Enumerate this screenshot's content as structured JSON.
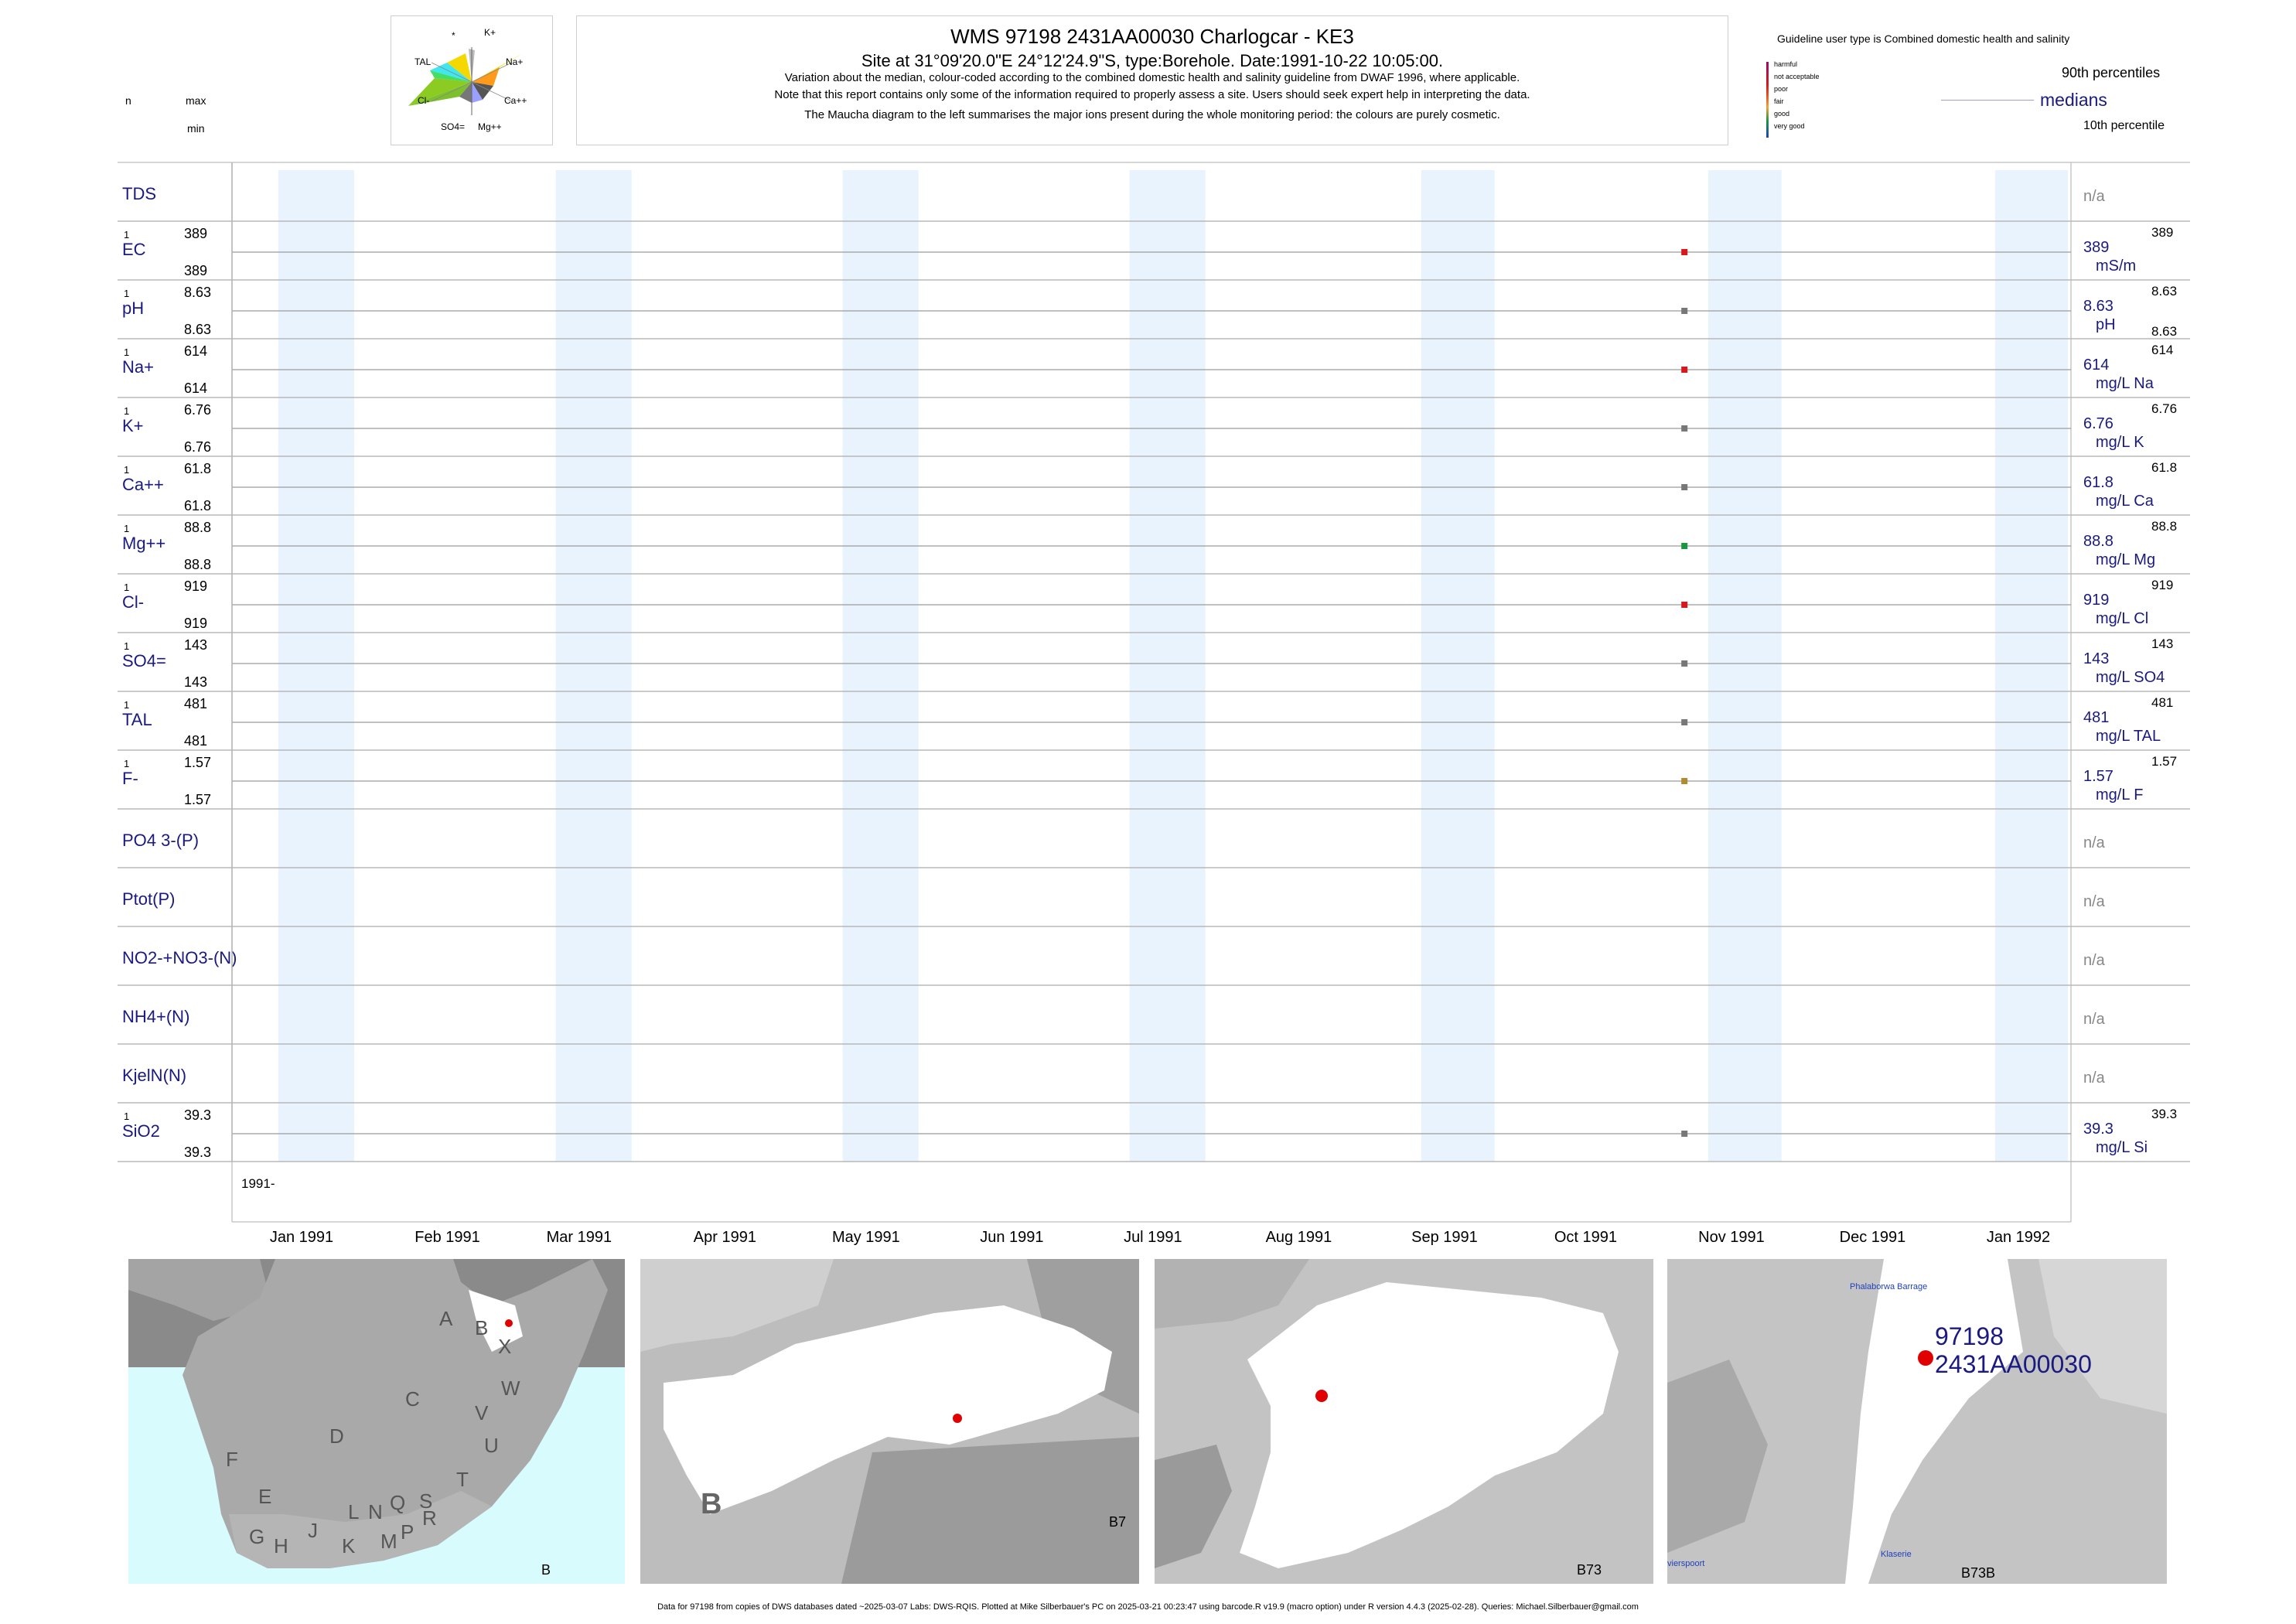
{
  "header": {
    "title": "WMS 97198 2431AA00030 Charlogcar - KE3",
    "subtitle": "Site at 31°09'20.0\"E 24°12'24.9\"S, type:Borehole. Date:1991-10-22 10:05:00.",
    "line1": "Variation about the median,  colour-coded according to the combined domestic health and salinity guideline from DWAF 1996, where applicable.",
    "line2": "Note that this report contains only some of the information required to properly assess a site. Users should seek expert help in interpreting the data.",
    "line3": "The Maucha diagram to the left summarises the major ions present during the whole monitoring period: the colours are purely cosmetic."
  },
  "left_header": {
    "n": "n",
    "max": "max",
    "min": "min"
  },
  "maucha": {
    "labels": {
      "star": "*",
      "k": "K+",
      "tal": "TAL",
      "na": "Na+",
      "cl": "Cl-",
      "ca": "Ca++",
      "so4": "SO4=",
      "mg": "Mg++"
    }
  },
  "guideline": {
    "title": "Guideline user type is Combined domestic health and salinity",
    "levels": [
      {
        "label": "harmful",
        "color": "#9a0a6e"
      },
      {
        "label": "not acceptable",
        "color": "#d7191c"
      },
      {
        "label": "poor",
        "color": "#e8551f"
      },
      {
        "label": "fair",
        "color": "#f2a43a"
      },
      {
        "label": "good",
        "color": "#1a9641"
      },
      {
        "label": "very good",
        "color": "#1f3fbf"
      }
    ],
    "p90": "90th percentiles",
    "medians": "medians",
    "p10": "10th percentile"
  },
  "chart_data": {
    "type": "scatter",
    "x_range": [
      "1991-01-01",
      "1992-01-01"
    ],
    "x_ticks": [
      "Jan 1991",
      "Feb 1991",
      "Mar 1991",
      "Apr 1991",
      "May 1991",
      "Jun 1991",
      "Jul 1991",
      "Aug 1991",
      "Sep 1991",
      "Oct 1991",
      "Nov 1991",
      "Dec 1991",
      "Jan 1992"
    ],
    "year_label": "1991-",
    "sample_date": "1991-10-22",
    "rows": [
      {
        "label": "TDS",
        "n": "",
        "max": "",
        "min": "",
        "right_value": "",
        "right_unit": "",
        "right_p90": "",
        "right_p10": "",
        "na": "n/a",
        "value": null,
        "color": ""
      },
      {
        "label": "EC",
        "n": "1",
        "max": "389",
        "min": "389",
        "right_value": "389",
        "right_unit": "mS/m",
        "right_p90": "389",
        "right_p10": "",
        "na": "",
        "value": 389,
        "color": "#d7191c"
      },
      {
        "label": "pH",
        "n": "1",
        "max": "8.63",
        "min": "8.63",
        "right_value": "8.63",
        "right_unit": "pH",
        "right_p90": "8.63",
        "right_p10": "8.63",
        "na": "",
        "value": 8.63,
        "color": "#777777"
      },
      {
        "label": "Na+",
        "n": "1",
        "max": "614",
        "min": "614",
        "right_value": "614",
        "right_unit": "mg/L Na",
        "right_p90": "614",
        "right_p10": "",
        "na": "",
        "value": 614,
        "color": "#d7191c"
      },
      {
        "label": "K+",
        "n": "1",
        "max": "6.76",
        "min": "6.76",
        "right_value": "6.76",
        "right_unit": "mg/L K",
        "right_p90": "6.76",
        "right_p10": "",
        "na": "",
        "value": 6.76,
        "color": "#777777"
      },
      {
        "label": "Ca++",
        "n": "1",
        "max": "61.8",
        "min": "61.8",
        "right_value": "61.8",
        "right_unit": "mg/L Ca",
        "right_p90": "61.8",
        "right_p10": "",
        "na": "",
        "value": 61.8,
        "color": "#777777"
      },
      {
        "label": "Mg++",
        "n": "1",
        "max": "88.8",
        "min": "88.8",
        "right_value": "88.8",
        "right_unit": "mg/L Mg",
        "right_p90": "88.8",
        "right_p10": "",
        "na": "",
        "value": 88.8,
        "color": "#1a9641"
      },
      {
        "label": "Cl-",
        "n": "1",
        "max": "919",
        "min": "919",
        "right_value": "919",
        "right_unit": "mg/L Cl",
        "right_p90": "919",
        "right_p10": "",
        "na": "",
        "value": 919,
        "color": "#d7191c"
      },
      {
        "label": "SO4=",
        "n": "1",
        "max": "143",
        "min": "143",
        "right_value": "143",
        "right_unit": "mg/L SO4",
        "right_p90": "143",
        "right_p10": "",
        "na": "",
        "value": 143,
        "color": "#777777"
      },
      {
        "label": "TAL",
        "n": "1",
        "max": "481",
        "min": "481",
        "right_value": "481",
        "right_unit": "mg/L TAL",
        "right_p90": "481",
        "right_p10": "",
        "na": "",
        "value": 481,
        "color": "#777777"
      },
      {
        "label": "F-",
        "n": "1",
        "max": "1.57",
        "min": "1.57",
        "right_value": "1.57",
        "right_unit": "mg/L F",
        "right_p90": "1.57",
        "right_p10": "",
        "na": "",
        "value": 1.57,
        "color": "#b08a30"
      },
      {
        "label": "PO4 3-(P)",
        "n": "",
        "max": "",
        "min": "",
        "right_value": "",
        "right_unit": "",
        "right_p90": "",
        "right_p10": "",
        "na": "n/a",
        "value": null,
        "color": ""
      },
      {
        "label": "Ptot(P)",
        "n": "",
        "max": "",
        "min": "",
        "right_value": "",
        "right_unit": "",
        "right_p90": "",
        "right_p10": "",
        "na": "n/a",
        "value": null,
        "color": ""
      },
      {
        "label": "NO2-+NO3-(N)",
        "n": "",
        "max": "",
        "min": "",
        "right_value": "",
        "right_unit": "",
        "right_p90": "",
        "right_p10": "",
        "na": "n/a",
        "value": null,
        "color": ""
      },
      {
        "label": "NH4+(N)",
        "n": "",
        "max": "",
        "min": "",
        "right_value": "",
        "right_unit": "",
        "right_p90": "",
        "right_p10": "",
        "na": "n/a",
        "value": null,
        "color": ""
      },
      {
        "label": "KjelN(N)",
        "n": "",
        "max": "",
        "min": "",
        "right_value": "",
        "right_unit": "",
        "right_p90": "",
        "right_p10": "",
        "na": "n/a",
        "value": null,
        "color": ""
      },
      {
        "label": "SiO2",
        "n": "1",
        "max": "39.3",
        "min": "39.3",
        "right_value": "39.3",
        "right_unit": "mg/L Si",
        "right_p90": "39.3",
        "right_p10": "",
        "na": "",
        "value": 39.3,
        "color": "#777777"
      }
    ]
  },
  "maps": {
    "map1": {
      "letters": [
        "A",
        "B",
        "X",
        "C",
        "W",
        "D",
        "V",
        "U",
        "F",
        "T",
        "E",
        "S",
        "L",
        "N",
        "Q",
        "R",
        "G",
        "H",
        "J",
        "K",
        "M",
        "P"
      ],
      "corner": "B"
    },
    "map2": {
      "big": "B",
      "corner": "B7"
    },
    "map3": {
      "corner": "B73"
    },
    "map4": {
      "site_id": "97198",
      "site_code": "2431AA00030",
      "place1": "Phalaborwa Barrage",
      "place2": "Klaserie",
      "place3": "vierspoort",
      "corner": "B73B"
    }
  },
  "footer": "Data for 97198 from copies of DWS databases dated ~2025-03-07 Labs: DWS-RQIS. Plotted at Mike Silberbauer's PC on 2025-03-21 00:23:47 using barcode.R v19.9 (macro option) under R version 4.4.3 (2025-02-28). Queries: Michael.Silberbauer@gmail.com"
}
